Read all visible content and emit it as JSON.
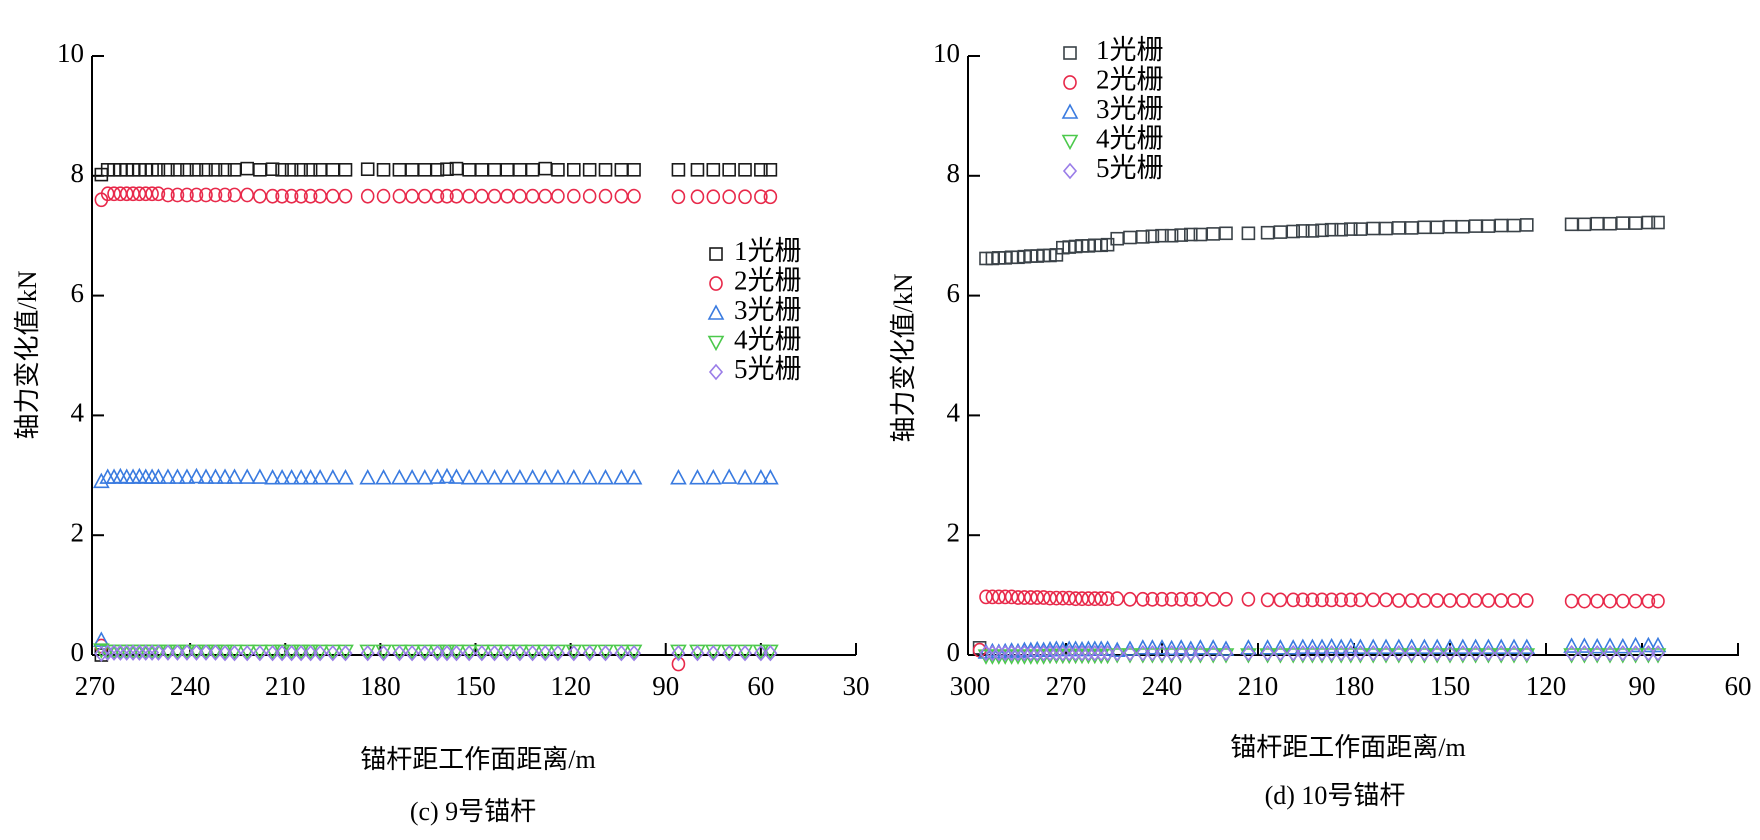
{
  "chart_data": [
    {
      "type": "scatter",
      "caption": "(c) 9号锚杆",
      "xlabel": "锚杆距工作面距离/m",
      "ylabel": "轴力变化值/kN",
      "xlim": [
        270,
        30
      ],
      "ylim": [
        0,
        10
      ],
      "xticks": [
        "270",
        "240",
        "210",
        "180",
        "150",
        "120",
        "90",
        "60",
        "30"
      ],
      "yticks": [
        "0",
        "2",
        "4",
        "6",
        "8",
        "10"
      ],
      "legend_position": "right-middle",
      "x": [
        268,
        266,
        264,
        262,
        260,
        258,
        256,
        254,
        252,
        250,
        247,
        244,
        241,
        238,
        235,
        232,
        229,
        226,
        222,
        218,
        214,
        211,
        208,
        205,
        202,
        199,
        195,
        191,
        184,
        179,
        174,
        170,
        166,
        162,
        159,
        156,
        152,
        148,
        144,
        140,
        136,
        132,
        128,
        124,
        119,
        114,
        109,
        104,
        100,
        86,
        80,
        75,
        70,
        65,
        60,
        57
      ],
      "series": [
        {
          "name": "1光栅",
          "marker": "square",
          "color": "#1a1a1a",
          "y": [
            8.02,
            8.1,
            8.1,
            8.1,
            8.1,
            8.1,
            8.1,
            8.1,
            8.1,
            8.1,
            8.1,
            8.1,
            8.1,
            8.1,
            8.1,
            8.1,
            8.1,
            8.1,
            8.12,
            8.1,
            8.11,
            8.1,
            8.1,
            8.1,
            8.1,
            8.1,
            8.1,
            8.1,
            8.11,
            8.1,
            8.1,
            8.1,
            8.1,
            8.1,
            8.11,
            8.12,
            8.1,
            8.1,
            8.1,
            8.1,
            8.1,
            8.1,
            8.12,
            8.1,
            8.1,
            8.1,
            8.1,
            8.1,
            8.1,
            8.1,
            8.1,
            8.1,
            8.1,
            8.1,
            8.1,
            8.1
          ],
          "extra": [
            [
              268,
              0.0
            ]
          ]
        },
        {
          "name": "2光栅",
          "marker": "circle",
          "color": "#e8294a",
          "y": [
            7.6,
            7.7,
            7.7,
            7.7,
            7.7,
            7.7,
            7.7,
            7.7,
            7.7,
            7.7,
            7.68,
            7.68,
            7.68,
            7.68,
            7.68,
            7.68,
            7.68,
            7.68,
            7.68,
            7.66,
            7.66,
            7.66,
            7.66,
            7.66,
            7.66,
            7.66,
            7.66,
            7.66,
            7.66,
            7.66,
            7.66,
            7.66,
            7.66,
            7.66,
            7.66,
            7.66,
            7.66,
            7.66,
            7.66,
            7.66,
            7.66,
            7.66,
            7.66,
            7.66,
            7.66,
            7.66,
            7.66,
            7.66,
            7.66,
            7.65,
            7.65,
            7.65,
            7.65,
            7.65,
            7.65,
            7.65
          ],
          "extra": [
            [
              86,
              -0.15
            ],
            [
              268,
              0.15
            ]
          ]
        },
        {
          "name": "3光栅",
          "marker": "triangle-up",
          "color": "#3a7be0",
          "y": [
            2.9,
            2.97,
            2.97,
            2.98,
            2.97,
            2.97,
            2.98,
            2.97,
            2.97,
            2.97,
            2.97,
            2.97,
            2.97,
            2.98,
            2.97,
            2.97,
            2.97,
            2.97,
            2.97,
            2.97,
            2.96,
            2.96,
            2.96,
            2.96,
            2.96,
            2.96,
            2.96,
            2.96,
            2.96,
            2.96,
            2.96,
            2.96,
            2.96,
            2.97,
            2.98,
            2.97,
            2.96,
            2.96,
            2.96,
            2.96,
            2.96,
            2.96,
            2.96,
            2.96,
            2.96,
            2.96,
            2.96,
            2.96,
            2.96,
            2.96,
            2.96,
            2.96,
            2.97,
            2.96,
            2.96,
            2.96
          ],
          "extra": [
            [
              268,
              0.25
            ]
          ]
        },
        {
          "name": "4光栅",
          "marker": "triangle-down",
          "color": "#4cc94c",
          "y": [
            0.08,
            0.06,
            0.06,
            0.06,
            0.06,
            0.06,
            0.06,
            0.06,
            0.06,
            0.06,
            0.06,
            0.06,
            0.06,
            0.06,
            0.06,
            0.06,
            0.06,
            0.06,
            0.06,
            0.06,
            0.06,
            0.06,
            0.06,
            0.06,
            0.06,
            0.06,
            0.06,
            0.06,
            0.06,
            0.06,
            0.06,
            0.06,
            0.06,
            0.06,
            0.06,
            0.06,
            0.06,
            0.06,
            0.06,
            0.06,
            0.06,
            0.06,
            0.06,
            0.06,
            0.06,
            0.06,
            0.06,
            0.06,
            0.06,
            0.06,
            0.06,
            0.06,
            0.06,
            0.06,
            0.06,
            0.06
          ],
          "extra": []
        },
        {
          "name": "5光栅",
          "marker": "diamond",
          "color": "#9a7de8",
          "y": [
            0.02,
            0.04,
            0.04,
            0.04,
            0.04,
            0.04,
            0.04,
            0.04,
            0.04,
            0.04,
            0.04,
            0.04,
            0.04,
            0.04,
            0.04,
            0.04,
            0.03,
            0.03,
            0.03,
            0.03,
            0.03,
            0.03,
            0.03,
            0.03,
            0.03,
            0.03,
            0.03,
            0.03,
            0.03,
            0.03,
            0.03,
            0.03,
            0.03,
            0.03,
            0.03,
            0.03,
            0.03,
            0.03,
            0.03,
            0.03,
            0.03,
            0.03,
            0.03,
            0.03,
            0.03,
            0.03,
            0.03,
            0.03,
            0.03,
            0.03,
            0.03,
            0.03,
            0.03,
            0.03,
            0.03,
            0.03
          ],
          "extra": []
        }
      ]
    },
    {
      "type": "scatter",
      "caption": "(d) 10号锚杆",
      "xlabel": "锚杆距工作面距离/m",
      "ylabel": "轴力变化值/kN",
      "xlim": [
        300,
        60
      ],
      "ylim": [
        0,
        10
      ],
      "xticks": [
        "300",
        "270",
        "240",
        "210",
        "180",
        "150",
        "120",
        "90",
        "60"
      ],
      "yticks": [
        "0",
        "2",
        "4",
        "6",
        "8",
        "10"
      ],
      "legend_position": "top-left",
      "x": [
        295,
        293,
        291,
        289,
        287,
        285,
        283,
        281,
        279,
        277,
        275,
        273,
        271,
        269,
        267,
        265,
        263,
        261,
        259,
        257,
        254,
        250,
        246,
        243,
        240,
        237,
        234,
        231,
        228,
        224,
        220,
        213,
        207,
        203,
        199,
        196,
        193,
        190,
        187,
        184,
        181,
        178,
        174,
        170,
        166,
        162,
        158,
        154,
        150,
        146,
        142,
        138,
        134,
        130,
        126,
        112,
        108,
        104,
        100,
        96,
        92,
        88,
        85
      ],
      "series": [
        {
          "name": "1光栅",
          "marker": "square",
          "color": "#3a4248",
          "y": [
            6.62,
            6.62,
            6.63,
            6.63,
            6.64,
            6.64,
            6.65,
            6.66,
            6.66,
            6.67,
            6.67,
            6.68,
            6.8,
            6.81,
            6.82,
            6.83,
            6.83,
            6.84,
            6.84,
            6.85,
            6.95,
            6.97,
            6.98,
            6.99,
            7.0,
            7.0,
            7.01,
            7.02,
            7.02,
            7.03,
            7.04,
            7.04,
            7.05,
            7.06,
            7.07,
            7.08,
            7.08,
            7.09,
            7.1,
            7.1,
            7.11,
            7.11,
            7.12,
            7.12,
            7.13,
            7.13,
            7.14,
            7.14,
            7.15,
            7.15,
            7.16,
            7.16,
            7.17,
            7.17,
            7.18,
            7.19,
            7.19,
            7.2,
            7.2,
            7.21,
            7.21,
            7.22,
            7.22
          ],
          "extra": [
            [
              297,
              0.12
            ]
          ]
        },
        {
          "name": "2光栅",
          "marker": "circle",
          "color": "#e8294a",
          "y": [
            0.97,
            0.97,
            0.97,
            0.97,
            0.97,
            0.96,
            0.96,
            0.96,
            0.96,
            0.96,
            0.95,
            0.95,
            0.95,
            0.95,
            0.94,
            0.94,
            0.94,
            0.94,
            0.94,
            0.94,
            0.94,
            0.93,
            0.93,
            0.93,
            0.93,
            0.93,
            0.93,
            0.93,
            0.93,
            0.93,
            0.93,
            0.93,
            0.92,
            0.92,
            0.92,
            0.92,
            0.92,
            0.92,
            0.92,
            0.92,
            0.92,
            0.92,
            0.92,
            0.92,
            0.91,
            0.91,
            0.91,
            0.91,
            0.91,
            0.91,
            0.91,
            0.91,
            0.91,
            0.91,
            0.91,
            0.9,
            0.9,
            0.9,
            0.9,
            0.9,
            0.9,
            0.9,
            0.9
          ],
          "extra": [
            [
              297,
              0.08
            ]
          ]
        },
        {
          "name": "3光栅",
          "marker": "triangle-up",
          "color": "#3a7be0",
          "y": [
            0.05,
            0.06,
            0.05,
            0.06,
            0.07,
            0.06,
            0.08,
            0.08,
            0.09,
            0.08,
            0.09,
            0.1,
            0.09,
            0.1,
            0.1,
            0.09,
            0.1,
            0.1,
            0.1,
            0.1,
            0.08,
            0.1,
            0.12,
            0.12,
            0.12,
            0.11,
            0.12,
            0.1,
            0.12,
            0.12,
            0.1,
            0.12,
            0.12,
            0.12,
            0.12,
            0.13,
            0.13,
            0.13,
            0.14,
            0.13,
            0.14,
            0.13,
            0.13,
            0.13,
            0.13,
            0.13,
            0.13,
            0.13,
            0.13,
            0.13,
            0.13,
            0.13,
            0.13,
            0.13,
            0.13,
            0.15,
            0.15,
            0.14,
            0.15,
            0.14,
            0.16,
            0.16,
            0.16
          ],
          "extra": []
        },
        {
          "name": "4光栅",
          "marker": "triangle-down",
          "color": "#4cc94c",
          "y": [
            -0.02,
            -0.02,
            -0.02,
            -0.02,
            -0.02,
            -0.02,
            -0.02,
            -0.02,
            -0.02,
            -0.02,
            -0.01,
            -0.01,
            -0.01,
            -0.01,
            -0.01,
            -0.01,
            -0.01,
            -0.01,
            -0.01,
            -0.01,
            0.0,
            0.0,
            0.0,
            0.0,
            0.0,
            0.0,
            0.0,
            0.0,
            0.0,
            0.0,
            0.0,
            0.0,
            0.0,
            0.0,
            0.0,
            0.0,
            0.0,
            0.0,
            0.0,
            0.0,
            0.0,
            0.0,
            0.0,
            0.0,
            0.0,
            0.0,
            0.0,
            0.0,
            0.0,
            0.0,
            0.0,
            0.0,
            0.0,
            0.0,
            0.0,
            0.0,
            0.0,
            0.0,
            0.0,
            0.0,
            0.0,
            0.0,
            0.0
          ],
          "extra": []
        },
        {
          "name": "5光栅",
          "marker": "diamond",
          "color": "#9a7de8",
          "y": [
            0.03,
            0.03,
            0.03,
            0.03,
            0.03,
            0.03,
            0.03,
            0.03,
            0.03,
            0.03,
            0.03,
            0.03,
            0.03,
            0.03,
            0.03,
            0.03,
            0.03,
            0.03,
            0.03,
            0.03,
            0.03,
            0.03,
            0.03,
            0.03,
            0.03,
            0.03,
            0.03,
            0.03,
            0.03,
            0.03,
            0.03,
            0.03,
            0.03,
            0.03,
            0.03,
            0.03,
            0.03,
            0.03,
            0.03,
            0.03,
            0.03,
            0.03,
            0.03,
            0.03,
            0.03,
            0.03,
            0.03,
            0.03,
            0.03,
            0.03,
            0.03,
            0.03,
            0.03,
            0.03,
            0.03,
            0.03,
            0.03,
            0.03,
            0.03,
            0.03,
            0.03,
            0.03,
            0.03
          ],
          "extra": []
        }
      ]
    }
  ]
}
